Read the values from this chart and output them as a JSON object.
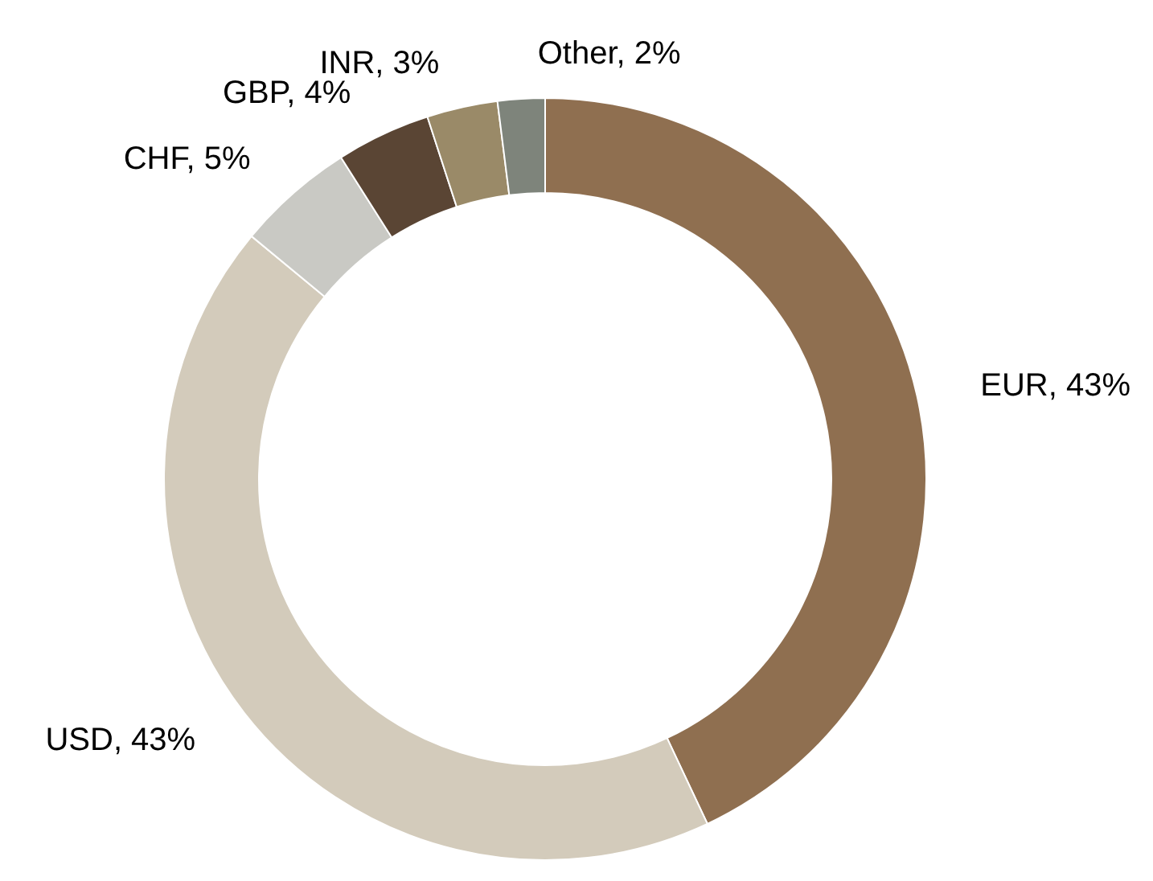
{
  "chart_data": {
    "type": "donut",
    "categories": [
      "EUR",
      "USD",
      "CHF",
      "GBP",
      "INR",
      "Other"
    ],
    "values": [
      43,
      43,
      5,
      4,
      3,
      2
    ],
    "colors": [
      "#8f6f50",
      "#d3cbbb",
      "#c9c9c4",
      "#5a4534",
      "#9a8a68",
      "#7e847b"
    ],
    "value_labels": [
      ", 43%",
      ", 43%",
      ", 5%",
      ", 4%",
      ", 3%",
      ", 2%"
    ]
  }
}
